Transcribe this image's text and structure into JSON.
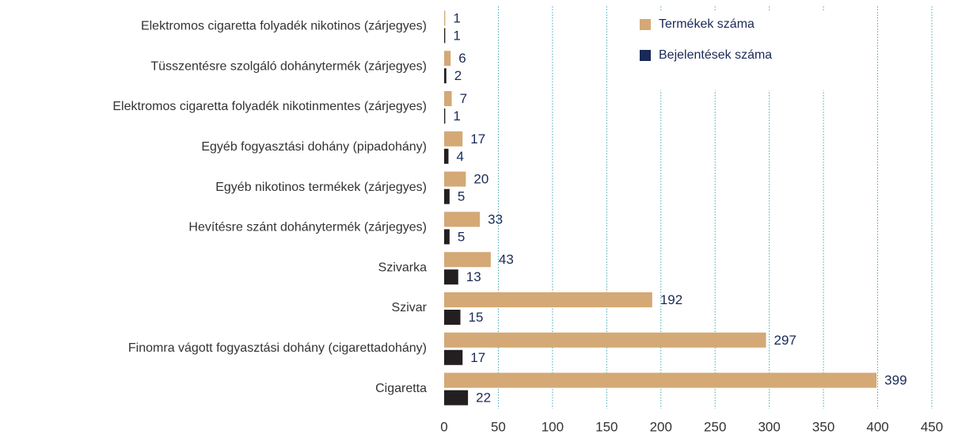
{
  "chart_data": {
    "type": "bar",
    "orientation": "horizontal",
    "categories": [
      "Elektromos cigaretta folyadék nikotinos (zárjegyes)",
      "Tüsszentésre szolgáló dohánytermék (zárjegyes)",
      "Elektromos cigaretta folyadék nikotinmentes (zárjegyes)",
      "Egyéb fogyasztási dohány (pipadohány)",
      "Egyéb nikotinos termékek (zárjegyes)",
      "Hevítésre szánt dohánytermék (zárjegyes)",
      "Szivarka",
      "Szivar",
      "Finomra vágott fogyasztási dohány (cigarettadohány)",
      "Cigaretta"
    ],
    "series": [
      {
        "name": "Termékek száma",
        "color": "#d4a976",
        "values": [
          1,
          6,
          7,
          17,
          20,
          33,
          43,
          192,
          297,
          399
        ]
      },
      {
        "name": "Bejelentések száma",
        "color": "#231f20",
        "values": [
          1,
          2,
          1,
          4,
          5,
          5,
          13,
          15,
          17,
          22
        ]
      }
    ],
    "xlim": [
      0,
      450
    ],
    "xticks": [
      0,
      50,
      100,
      150,
      200,
      250,
      300,
      350,
      400,
      450
    ],
    "grid": true,
    "legend": "top-right"
  }
}
